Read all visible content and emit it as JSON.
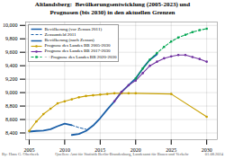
{
  "chart_data": {
    "type": "line",
    "title": "Altlandsberg:  Bevölkerungsentwicklung (2005-2023) und\nPrognosen (bis 2030) in den aktuellen Grenzen",
    "annotations": [
      "By: Hans G. Oberbeck",
      "Quellen: Amt für Statistik Berlin-Brandenburg, Landesamt für Bauen und Verkehr",
      "01.08.2024"
    ],
    "xlim": [
      2004.5,
      2031.5
    ],
    "xticks": [
      2005,
      2010,
      2015,
      2020,
      2025,
      2030
    ],
    "ylim": [
      8300,
      10050
    ],
    "yticks": [
      {
        "value": 8400,
        "label": "8,400"
      },
      {
        "value": 8600,
        "label": "8,600"
      },
      {
        "value": 8800,
        "label": "8,800"
      },
      {
        "value": 9000,
        "label": "9,000"
      },
      {
        "value": 9200,
        "label": "9,200"
      },
      {
        "value": 9400,
        "label": "9,400"
      },
      {
        "value": 9600,
        "label": "9,600"
      },
      {
        "value": 9800,
        "label": "9,800"
      },
      {
        "value": 10000,
        "label": "10,000"
      }
    ],
    "grid": true,
    "legend": "upper left",
    "series": [
      {
        "name": "Bevölkerung (vor Zensus 2011)",
        "color": "#1a5fa8",
        "line_style": "solid",
        "marker": "none",
        "x": [
          2005,
          2006,
          2007,
          2008,
          2009,
          2010,
          2011
        ],
        "values": [
          8420,
          8430,
          8435,
          8455,
          8500,
          8540,
          8515
        ]
      },
      {
        "name": "Zensumfeld 2011",
        "color": "#1a5fa8",
        "line_style": "dashed",
        "marker": "none",
        "x": [
          2011,
          2012,
          2013
        ],
        "values": [
          8515,
          8480,
          8455
        ]
      },
      {
        "name": "Bevölkerung (nach Zensus)",
        "color": "#1a5fa8",
        "line_style": "solid",
        "marker": "none",
        "x": [
          2011,
          2012,
          2013,
          2014,
          2015,
          2016,
          2017,
          2018,
          2019,
          2020,
          2021,
          2022,
          2023
        ],
        "values": [
          8370,
          8385,
          8430,
          8510,
          8620,
          8750,
          8870,
          9010,
          9110,
          9210,
          9360,
          9490,
          9570
        ]
      },
      {
        "name": "Prognose des Landes BB 2005-2030",
        "color": "#c8a000",
        "line_style": "solid",
        "marker": "circle",
        "x": [
          2005,
          2006,
          2007,
          2008,
          2009,
          2010,
          2011,
          2012,
          2013,
          2014,
          2015,
          2016,
          2017,
          2018,
          2019,
          2020,
          2025,
          2030
        ],
        "values": [
          8430,
          8570,
          8680,
          8760,
          8840,
          8870,
          8900,
          8930,
          8950,
          8960,
          8970,
          8980,
          8990,
          8990,
          8990,
          8990,
          8980,
          8640
        ]
      },
      {
        "name": "Prognose des Landes BB 2017-2030",
        "color": "#7030a0",
        "line_style": "solid",
        "marker": "circle",
        "x": [
          2017,
          2018,
          2019,
          2020,
          2021,
          2022,
          2023,
          2024,
          2025,
          2026,
          2027,
          2028,
          2029,
          2030
        ],
        "values": [
          8870,
          9010,
          9110,
          9180,
          9290,
          9400,
          9460,
          9510,
          9540,
          9560,
          9560,
          9530,
          9500,
          9460
        ]
      },
      {
        "name": "= +Prognose des Landes BB 2020-2030",
        "color": "#00a550",
        "line_style": "dashed",
        "marker": "square",
        "x": [
          2020,
          2021,
          2022,
          2023,
          2024,
          2025,
          2026,
          2027,
          2028,
          2029,
          2030
        ],
        "values": [
          9210,
          9360,
          9490,
          9590,
          9680,
          9760,
          9820,
          9860,
          9900,
          9930,
          9950
        ]
      }
    ]
  }
}
